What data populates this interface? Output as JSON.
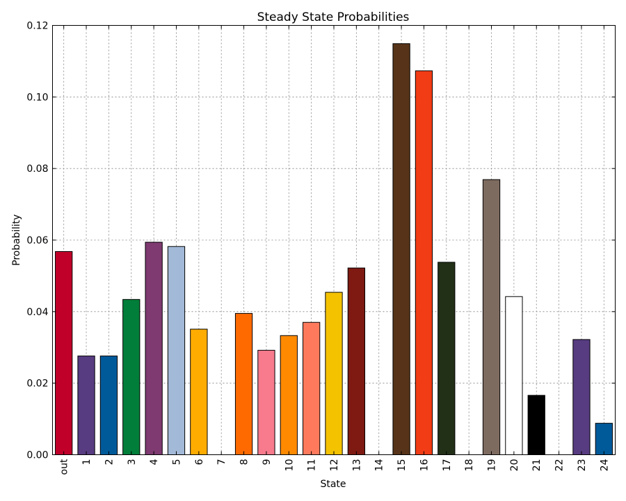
{
  "chart_data": {
    "type": "bar",
    "title": "Steady State Probabilities",
    "xlabel": "State",
    "ylabel": "Probability",
    "ylim": [
      0,
      0.12
    ],
    "yticks": [
      "0.00",
      "0.02",
      "0.04",
      "0.06",
      "0.08",
      "0.10",
      "0.12"
    ],
    "grid": true,
    "categories": [
      "out",
      "1",
      "2",
      "3",
      "4",
      "5",
      "6",
      "7",
      "8",
      "9",
      "10",
      "11",
      "12",
      "13",
      "14",
      "15",
      "16",
      "17",
      "18",
      "19",
      "20",
      "21",
      "22",
      "23",
      "24"
    ],
    "values": [
      0.0568,
      0.0276,
      0.0276,
      0.0434,
      0.0594,
      0.0582,
      0.0351,
      0.0,
      0.0395,
      0.0292,
      0.0333,
      0.037,
      0.0454,
      0.0522,
      0.0,
      0.1149,
      0.1073,
      0.0538,
      0.0,
      0.0769,
      0.0442,
      0.0166,
      0.0,
      0.0322,
      0.0088
    ],
    "colors": [
      "#c1002a",
      "#573c81",
      "#005a9a",
      "#007e3a",
      "#7e3a71",
      "#a3b9d8",
      "#ffac00",
      "#ffffff",
      "#ff6a00",
      "#f77a8d",
      "#ff8a00",
      "#ff7a5c",
      "#f5c200",
      "#7e1a12",
      "#ffffff",
      "#573419",
      "#f23c15",
      "#223018",
      "#ffffff",
      "#7e6b60",
      "#ffffff",
      "#000000",
      "#ffffff",
      "#573c81",
      "#005a9a"
    ]
  }
}
